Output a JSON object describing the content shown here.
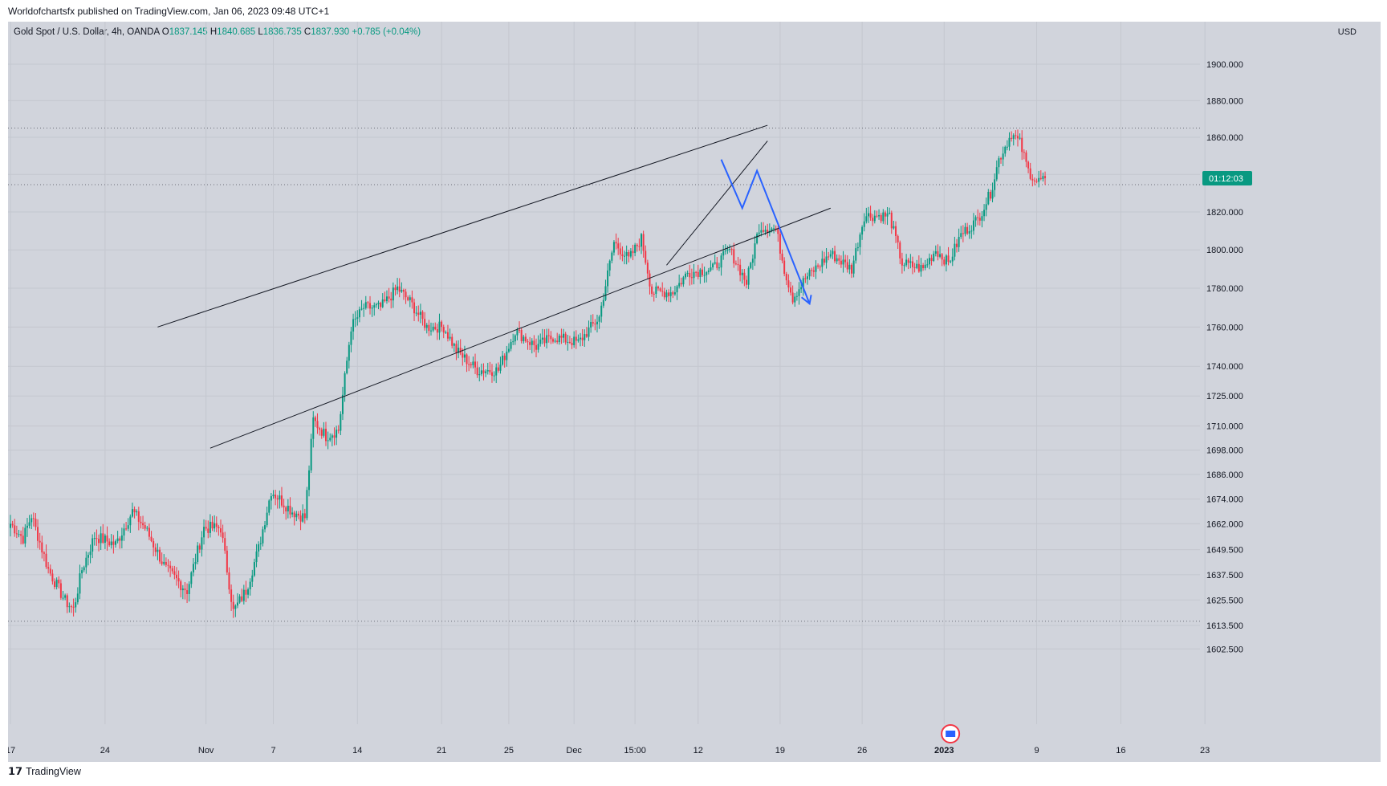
{
  "header": {
    "published": "Worldofchartsfx published on TradingView.com, Jan 06, 2023 09:48 UTC+1"
  },
  "footer": {
    "brand": "TradingView",
    "brand_icon": "tradingview-logo-icon"
  },
  "legend": {
    "symbol": "Gold Spot / U.S. Dollar, 4h, OANDA",
    "o_label": "O",
    "o": "1837.145",
    "h_label": "H",
    "h": "1840.685",
    "l_label": "L",
    "l": "1836.735",
    "c_label": "C",
    "c": "1837.930",
    "change": "+0.785 (+0.04%)"
  },
  "currency": "USD",
  "price_tag": {
    "time": "01:12:03",
    "color": "#089981"
  },
  "colors": {
    "up": "#089981",
    "down": "#f23645",
    "bg": "#d1d4dc",
    "projection": "#2962ff",
    "trendline": "#131722"
  },
  "chart_data": {
    "type": "candlestick",
    "title": "Gold Spot / U.S. Dollar, 4h, OANDA",
    "y_scale": "log",
    "ylim": [
      1596,
      1928
    ],
    "y_ticks": [
      "1900.000",
      "1880.000",
      "1860.000",
      "1840.000",
      "1820.000",
      "1800.000",
      "1780.000",
      "1760.000",
      "1740.000",
      "1725.000",
      "1710.000",
      "1698.000",
      "1686.000",
      "1674.000",
      "1662.000",
      "1649.500",
      "1637.500",
      "1625.500",
      "1613.500",
      "1602.500"
    ],
    "x_ticks": [
      "17",
      "24",
      "Nov",
      "7",
      "14",
      "21",
      "25",
      "Dec",
      "15:00",
      "12",
      "19",
      "26",
      "2023",
      "9",
      "16",
      "23"
    ],
    "bar_count_range": [
      0,
      430
    ],
    "horizontal_levels": [
      1865.0,
      1615.5,
      1834.5
    ],
    "trendlines": [
      {
        "from": [
          70,
          1760
        ],
        "to": [
          360,
          1866.5
        ]
      },
      {
        "from": [
          95,
          1699
        ],
        "to": [
          390,
          1822
        ]
      },
      {
        "from": [
          312,
          1792
        ],
        "to": [
          360,
          1858
        ]
      }
    ],
    "projection": [
      [
        338,
        1848
      ],
      [
        348,
        1822
      ],
      [
        355,
        1842
      ],
      [
        380,
        1772
      ]
    ],
    "anchors": [
      [
        0,
        1662
      ],
      [
        6,
        1655
      ],
      [
        10,
        1666
      ],
      [
        18,
        1640
      ],
      [
        26,
        1625
      ],
      [
        30,
        1621
      ],
      [
        34,
        1640
      ],
      [
        40,
        1656
      ],
      [
        50,
        1652
      ],
      [
        58,
        1668
      ],
      [
        64,
        1660
      ],
      [
        74,
        1640
      ],
      [
        84,
        1630
      ],
      [
        92,
        1660
      ],
      [
        100,
        1660
      ],
      [
        106,
        1620
      ],
      [
        112,
        1630
      ],
      [
        118,
        1650
      ],
      [
        124,
        1678
      ],
      [
        134,
        1668
      ],
      [
        140,
        1665
      ],
      [
        144,
        1713
      ],
      [
        150,
        1705
      ],
      [
        156,
        1708
      ],
      [
        162,
        1760
      ],
      [
        168,
        1770
      ],
      [
        176,
        1770
      ],
      [
        184,
        1780
      ],
      [
        190,
        1773
      ],
      [
        198,
        1760
      ],
      [
        206,
        1760
      ],
      [
        212,
        1748
      ],
      [
        222,
        1738
      ],
      [
        232,
        1738
      ],
      [
        240,
        1758
      ],
      [
        250,
        1750
      ],
      [
        258,
        1755
      ],
      [
        270,
        1752
      ],
      [
        280,
        1765
      ],
      [
        287,
        1804
      ],
      [
        294,
        1795
      ],
      [
        300,
        1806
      ],
      [
        305,
        1778
      ],
      [
        315,
        1778
      ],
      [
        322,
        1788
      ],
      [
        334,
        1790
      ],
      [
        342,
        1800
      ],
      [
        350,
        1783
      ],
      [
        356,
        1812
      ],
      [
        364,
        1811
      ],
      [
        368,
        1790
      ],
      [
        372,
        1775
      ],
      [
        378,
        1785
      ],
      [
        390,
        1798
      ],
      [
        400,
        1790
      ],
      [
        406,
        1818
      ],
      [
        418,
        1818
      ],
      [
        424,
        1793
      ],
      [
        434,
        1790
      ],
      [
        440,
        1800
      ],
      [
        446,
        1793
      ],
      [
        452,
        1808
      ],
      [
        460,
        1816
      ],
      [
        466,
        1830
      ],
      [
        470,
        1848
      ],
      [
        476,
        1862
      ],
      [
        480,
        1857
      ],
      [
        484,
        1842
      ],
      [
        488,
        1836
      ],
      [
        492,
        1838
      ]
    ]
  }
}
